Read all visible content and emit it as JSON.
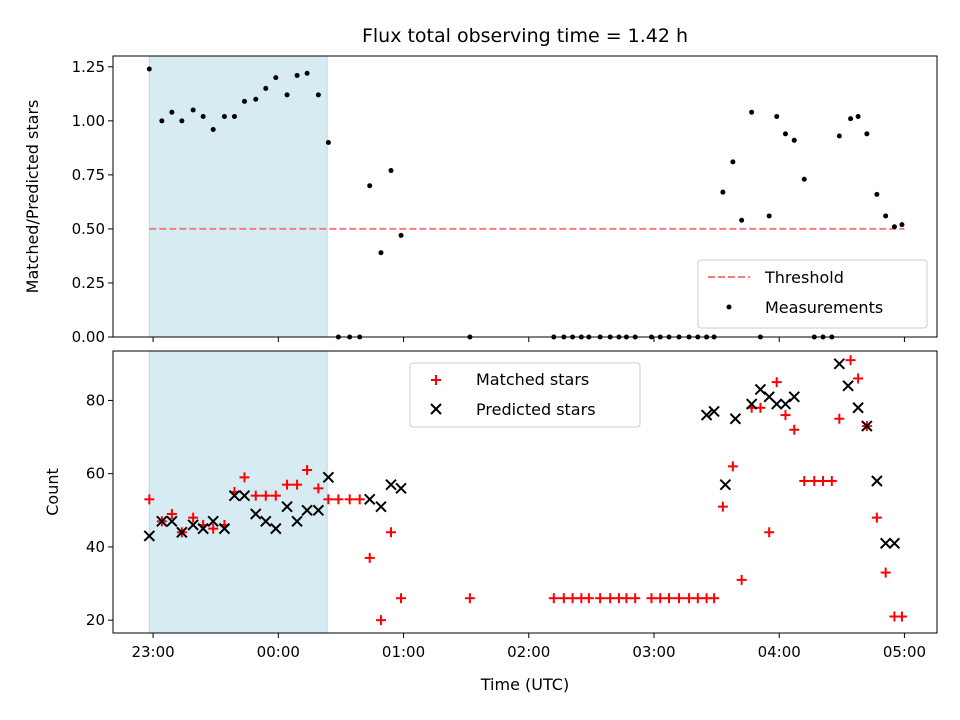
{
  "chart_data": {
    "type": "scatter",
    "title": "Flux total observing time = 1.42 h",
    "shared_x": {
      "label": "Time (UTC)",
      "unit": "hours since 23:00",
      "ticks": [
        {
          "v": 0,
          "label": "23:00"
        },
        {
          "v": 1,
          "label": "00:00"
        },
        {
          "v": 2,
          "label": "01:00"
        },
        {
          "v": 3,
          "label": "02:00"
        },
        {
          "v": 4,
          "label": "03:00"
        },
        {
          "v": 5,
          "label": "04:00"
        },
        {
          "v": 6,
          "label": "05:00"
        }
      ],
      "xlim": [
        -0.32,
        6.26
      ]
    },
    "shaded_interval": {
      "start": -0.03,
      "end": 1.39,
      "color": "#add8e6"
    },
    "panels": [
      {
        "ylabel": "Matched/Predicted stars",
        "ylim": [
          0,
          1.3
        ],
        "yticks": [
          {
            "v": 0,
            "label": "0.00"
          },
          {
            "v": 0.25,
            "label": "0.25"
          },
          {
            "v": 0.5,
            "label": "0.50"
          },
          {
            "v": 0.75,
            "label": "0.75"
          },
          {
            "v": 1.0,
            "label": "1.00"
          },
          {
            "v": 1.25,
            "label": "1.25"
          }
        ],
        "threshold": {
          "name": "Threshold",
          "value": 0.5,
          "x_range": [
            -0.03,
            6.0
          ],
          "color": "#f08080"
        },
        "legend": {
          "placement": "lower-right",
          "entries": [
            "Threshold",
            "Measurements"
          ]
        },
        "series": [
          {
            "name": "Measurements",
            "marker": "dot",
            "color": "#000000",
            "x": [
              -0.03,
              0.07,
              0.15,
              0.23,
              0.32,
              0.4,
              0.48,
              0.57,
              0.65,
              0.73,
              0.82,
              0.9,
              0.98,
              1.07,
              1.15,
              1.23,
              1.32,
              1.4,
              1.48,
              1.57,
              1.65,
              1.73,
              1.82,
              1.9,
              1.98,
              2.53,
              3.2,
              3.28,
              3.35,
              3.42,
              3.48,
              3.57,
              3.65,
              3.72,
              3.78,
              3.85,
              3.98,
              4.05,
              4.12,
              4.2,
              4.28,
              4.35,
              4.42,
              4.48,
              4.55,
              4.63,
              4.7,
              4.78,
              4.85,
              4.92,
              4.98,
              5.05,
              5.12,
              5.2,
              5.28,
              5.35,
              5.42,
              5.48,
              5.57,
              5.63,
              5.7,
              5.78,
              5.85,
              5.92,
              5.98
            ],
            "y": [
              1.24,
              1.0,
              1.04,
              1.0,
              1.05,
              1.02,
              0.96,
              1.02,
              1.02,
              1.09,
              1.1,
              1.15,
              1.2,
              1.12,
              1.21,
              1.22,
              1.12,
              0.9,
              0.0,
              0.0,
              0.0,
              0.7,
              0.39,
              0.77,
              0.47,
              0.0,
              0.0,
              0.0,
              0.0,
              0.0,
              0.0,
              0.0,
              0.0,
              0.0,
              0.0,
              0.0,
              0.0,
              0.0,
              0.0,
              0.0,
              0.0,
              0.0,
              0.0,
              0.0,
              0.67,
              0.81,
              0.54,
              1.04,
              0.0,
              0.56,
              1.02,
              0.94,
              0.91,
              0.73,
              0.0,
              0.0,
              0.0,
              0.93,
              1.01,
              1.02,
              0.94,
              0.66,
              0.56,
              0.51,
              0.52
            ]
          }
        ]
      },
      {
        "ylabel": "Count",
        "ylim": [
          16.5,
          93.5
        ],
        "yticks": [
          {
            "v": 20,
            "label": "20"
          },
          {
            "v": 40,
            "label": "40"
          },
          {
            "v": 60,
            "label": "60"
          },
          {
            "v": 80,
            "label": "80"
          }
        ],
        "legend": {
          "placement": "upper-center",
          "entries": [
            "Matched stars",
            "Predicted stars"
          ]
        },
        "series": [
          {
            "name": "Matched stars",
            "marker": "plus",
            "color": "#ff0000",
            "x": [
              -0.03,
              0.07,
              0.15,
              0.23,
              0.32,
              0.4,
              0.48,
              0.57,
              0.65,
              0.73,
              0.82,
              0.9,
              0.98,
              1.07,
              1.15,
              1.23,
              1.32,
              1.4,
              1.48,
              1.57,
              1.65,
              1.73,
              1.82,
              1.9,
              1.98,
              2.53,
              3.2,
              3.28,
              3.35,
              3.42,
              3.48,
              3.57,
              3.65,
              3.72,
              3.78,
              3.85,
              3.98,
              4.05,
              4.12,
              4.2,
              4.28,
              4.35,
              4.42,
              4.48,
              4.55,
              4.63,
              4.7,
              4.78,
              4.85,
              4.92,
              4.98,
              5.05,
              5.12,
              5.2,
              5.28,
              5.35,
              5.42,
              5.48,
              5.57,
              5.63,
              5.7,
              5.78,
              5.85,
              5.92,
              5.98
            ],
            "y": [
              53,
              47,
              49,
              44,
              48,
              46,
              45,
              46,
              55,
              59,
              54,
              54,
              54,
              57,
              57,
              61,
              56,
              53,
              53,
              53,
              53,
              37,
              20,
              44,
              26,
              26,
              26,
              26,
              26,
              26,
              26,
              26,
              26,
              26,
              26,
              26,
              26,
              26,
              26,
              26,
              26,
              26,
              26,
              26,
              51,
              62,
              31,
              78,
              78,
              44,
              85,
              76,
              72,
              58,
              58,
              58,
              58,
              75,
              91,
              86,
              73,
              48,
              33,
              21,
              21
            ]
          },
          {
            "name": "Predicted stars",
            "marker": "x",
            "color": "#000000",
            "x": [
              -0.03,
              0.07,
              0.15,
              0.23,
              0.32,
              0.4,
              0.48,
              0.57,
              0.65,
              0.73,
              0.82,
              0.9,
              0.98,
              1.07,
              1.15,
              1.23,
              1.32,
              1.4,
              1.73,
              1.82,
              1.9,
              1.98,
              4.42,
              4.48,
              4.57,
              4.65,
              4.78,
              4.85,
              4.92,
              4.98,
              5.05,
              5.12,
              5.48,
              5.55,
              5.63,
              5.7,
              5.78,
              5.85,
              5.92
            ],
            "y": [
              43,
              47,
              47,
              44,
              46,
              45,
              47,
              45,
              54,
              54,
              49,
              47,
              45,
              51,
              47,
              50,
              50,
              59,
              53,
              51,
              57,
              56,
              76,
              77,
              57,
              75,
              79,
              83,
              81,
              79,
              79,
              81,
              90,
              84,
              78,
              73,
              58,
              41,
              41
            ]
          }
        ]
      }
    ]
  }
}
